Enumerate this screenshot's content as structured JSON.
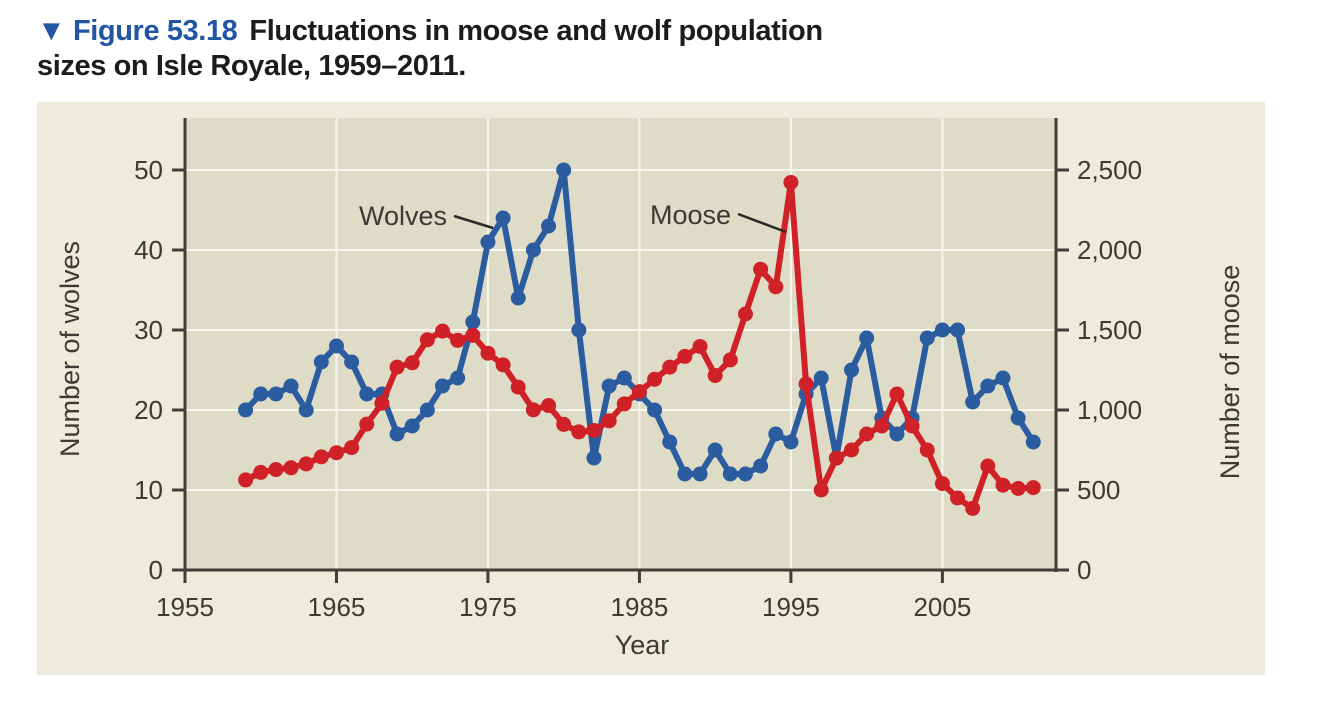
{
  "title": {
    "figure_label": "▼ Figure 53.18",
    "line1": "Fluctuations in moose and wolf population",
    "line2": "sizes on Isle Royale, 1959–2011."
  },
  "annotations": {
    "wolves_label": "Wolves",
    "moose_label": "Moose"
  },
  "colors": {
    "title_blue": "#2156a5",
    "title_black": "#1c1c1c",
    "panel_bg": "#edebdb",
    "plot_bg": "#dedcc7",
    "gridline": "#f7f6ee",
    "axis": "#3f3e38",
    "tick_text": "#3b3a34",
    "wolves_line": "#2b5c9f",
    "moose_line": "#cf2127"
  },
  "chart_data": {
    "type": "line",
    "title": "Fluctuations in moose and wolf population sizes on Isle Royale, 1959–2011",
    "xlabel": "Year",
    "ylabel_left": "Number of wolves",
    "ylabel_right": "Number of moose",
    "xlim": [
      1955,
      2012.5
    ],
    "ylim_left": [
      0,
      50
    ],
    "ylim_right": [
      0,
      2500
    ],
    "x_ticks": [
      1955,
      1965,
      1975,
      1985,
      1995,
      2005
    ],
    "y_ticks_left": [
      "0",
      "10",
      "20",
      "30",
      "40",
      "50"
    ],
    "y_ticks_right": [
      "0",
      "500",
      "1,000",
      "1,500",
      "2,000",
      "2,500"
    ],
    "grid": true,
    "legend_position": "inline-annotations",
    "years": [
      1959,
      1960,
      1961,
      1962,
      1963,
      1964,
      1965,
      1966,
      1967,
      1968,
      1969,
      1970,
      1971,
      1972,
      1973,
      1974,
      1975,
      1976,
      1977,
      1978,
      1979,
      1980,
      1981,
      1982,
      1983,
      1984,
      1985,
      1986,
      1987,
      1988,
      1989,
      1990,
      1991,
      1992,
      1993,
      1994,
      1995,
      1996,
      1997,
      1998,
      1999,
      2000,
      2001,
      2002,
      2003,
      2004,
      2005,
      2006,
      2007,
      2008,
      2009,
      2010,
      2011
    ],
    "series": [
      {
        "name": "Wolves",
        "axis": "left",
        "color": "#2b5c9f",
        "values": [
          20,
          22,
          22,
          23,
          20,
          26,
          28,
          26,
          22,
          22,
          17,
          18,
          20,
          23,
          24,
          31,
          41,
          44,
          34,
          40,
          43,
          50,
          30,
          14,
          23,
          24,
          22,
          20,
          16,
          12,
          12,
          15,
          12,
          12,
          13,
          17,
          16,
          22,
          24,
          14,
          25,
          29,
          19,
          17,
          19,
          29,
          30,
          30,
          21,
          23,
          24,
          19,
          16
        ]
      },
      {
        "name": "Moose",
        "axis": "right",
        "color": "#cf2127",
        "values": [
          563,
          610,
          628,
          639,
          663,
          707,
          733,
          765,
          912,
          1042,
          1268,
          1295,
          1439,
          1493,
          1435,
          1467,
          1355,
          1282,
          1143,
          1001,
          1028,
          910,
          863,
          872,
          932,
          1038,
          1115,
          1192,
          1268,
          1335,
          1397,
          1216,
          1313,
          1600,
          1880,
          1770,
          2422,
          1163,
          500,
          699,
          750,
          850,
          900,
          1100,
          900,
          750,
          540,
          450,
          385,
          650,
          530,
          510,
          515
        ]
      }
    ]
  }
}
